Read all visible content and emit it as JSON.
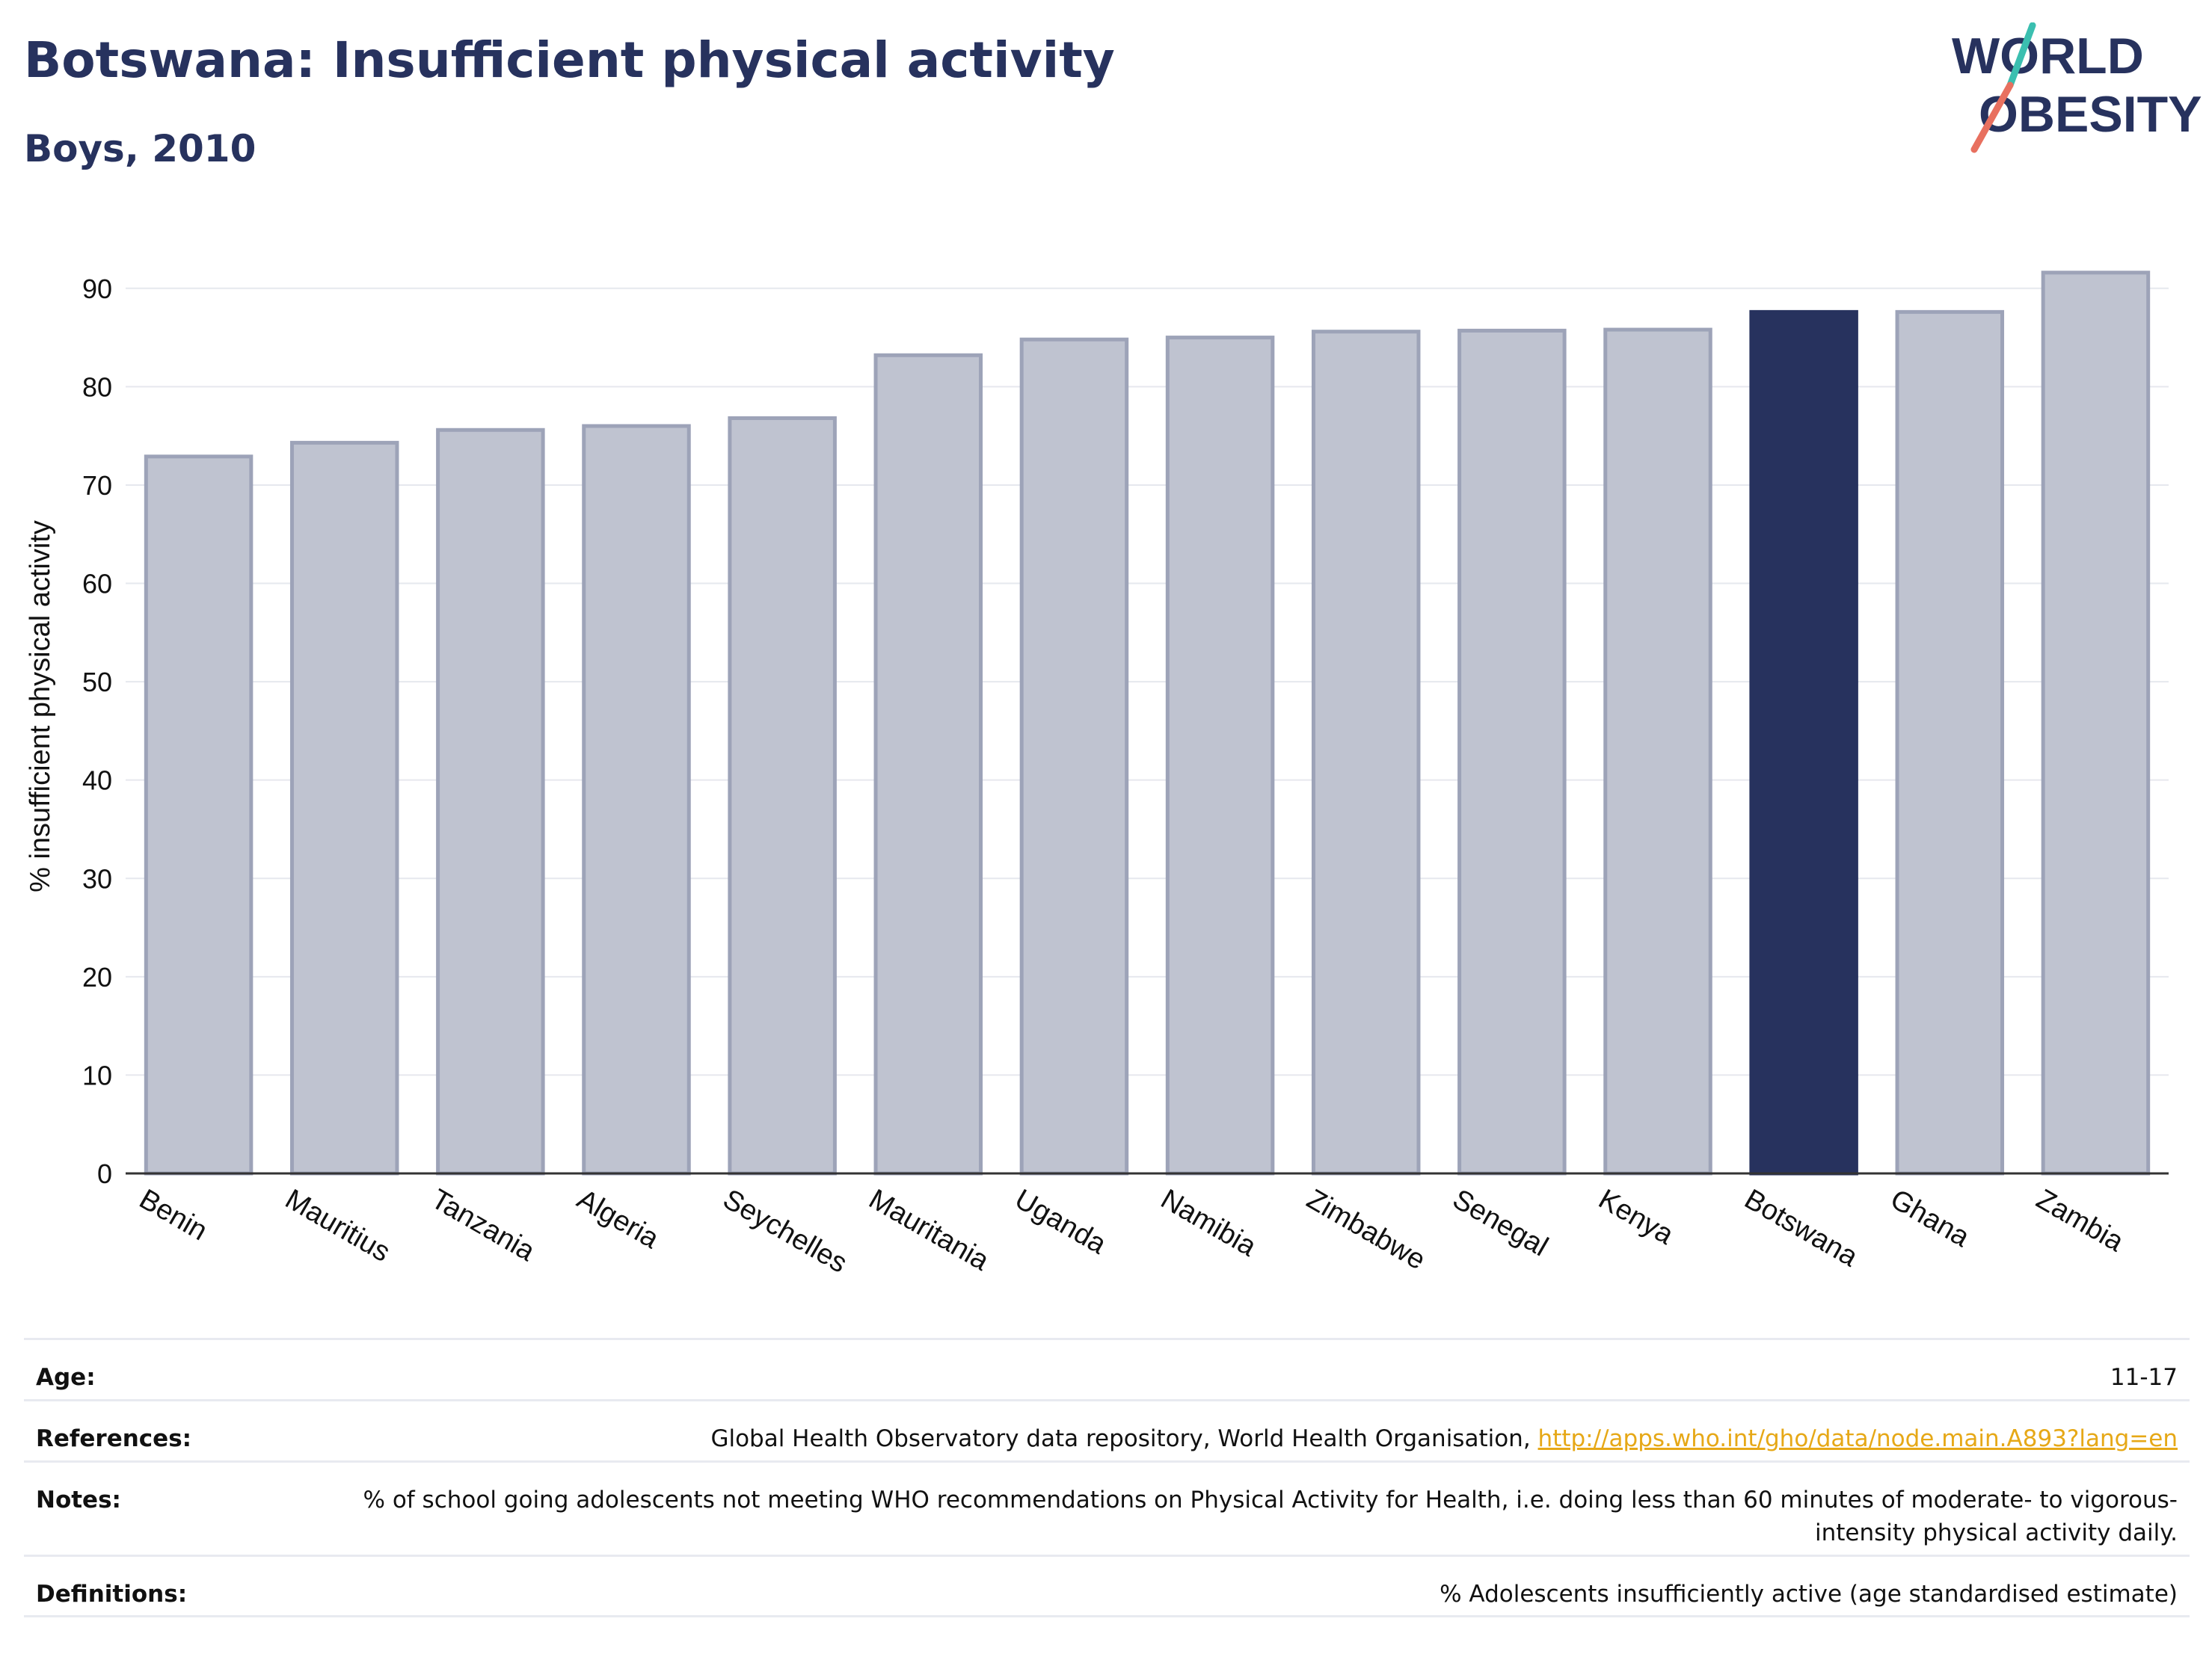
{
  "header": {
    "title": "Botswana: Insufficient physical activity",
    "subtitle": "Boys, 2010"
  },
  "logo": {
    "line1": "WORLD",
    "line2": "OBESITY"
  },
  "colors": {
    "highlight": "#27325e",
    "bar": "#bfc3d0",
    "bar_border": "#9da3b8",
    "link": "#e6a817",
    "accent_teal": "#3bbfb0",
    "accent_coral": "#e8705f"
  },
  "chart_data": {
    "type": "bar",
    "categories": [
      "Benin",
      "Mauritius",
      "Tanzania",
      "Algeria",
      "Seychelles",
      "Mauritania",
      "Uganda",
      "Namibia",
      "Zimbabwe",
      "Senegal",
      "Kenya",
      "Botswana",
      "Ghana",
      "Zambia"
    ],
    "values": [
      72.9,
      74.3,
      75.6,
      76.0,
      76.8,
      83.2,
      84.8,
      85.0,
      85.6,
      85.7,
      85.8,
      87.6,
      87.6,
      91.6
    ],
    "highlight": "Botswana",
    "title": "Botswana: Insufficient physical activity",
    "subtitle": "Boys, 2010",
    "xlabel": "",
    "ylabel": "% insufficient physical activity",
    "ylim": [
      0,
      95
    ],
    "yticks": [
      0,
      10,
      20,
      30,
      40,
      50,
      60,
      70,
      80,
      90
    ],
    "grid": true
  },
  "info": {
    "rows": [
      {
        "label": "Age:",
        "value": "11-17"
      },
      {
        "label": "References:",
        "value": "Global Health Observatory data repository, World Health Organisation, ",
        "link": "http://apps.who.int/gho/data/node.main.A893?lang=en"
      },
      {
        "label": "Notes:",
        "value": "% of school going adolescents not meeting WHO recommendations on Physical Activity for Health, i.e. doing less than 60 minutes of moderate- to vigorous-intensity physical activity daily."
      },
      {
        "label": "Definitions:",
        "value": "% Adolescents insufficiently active (age standardised estimate)"
      }
    ]
  }
}
